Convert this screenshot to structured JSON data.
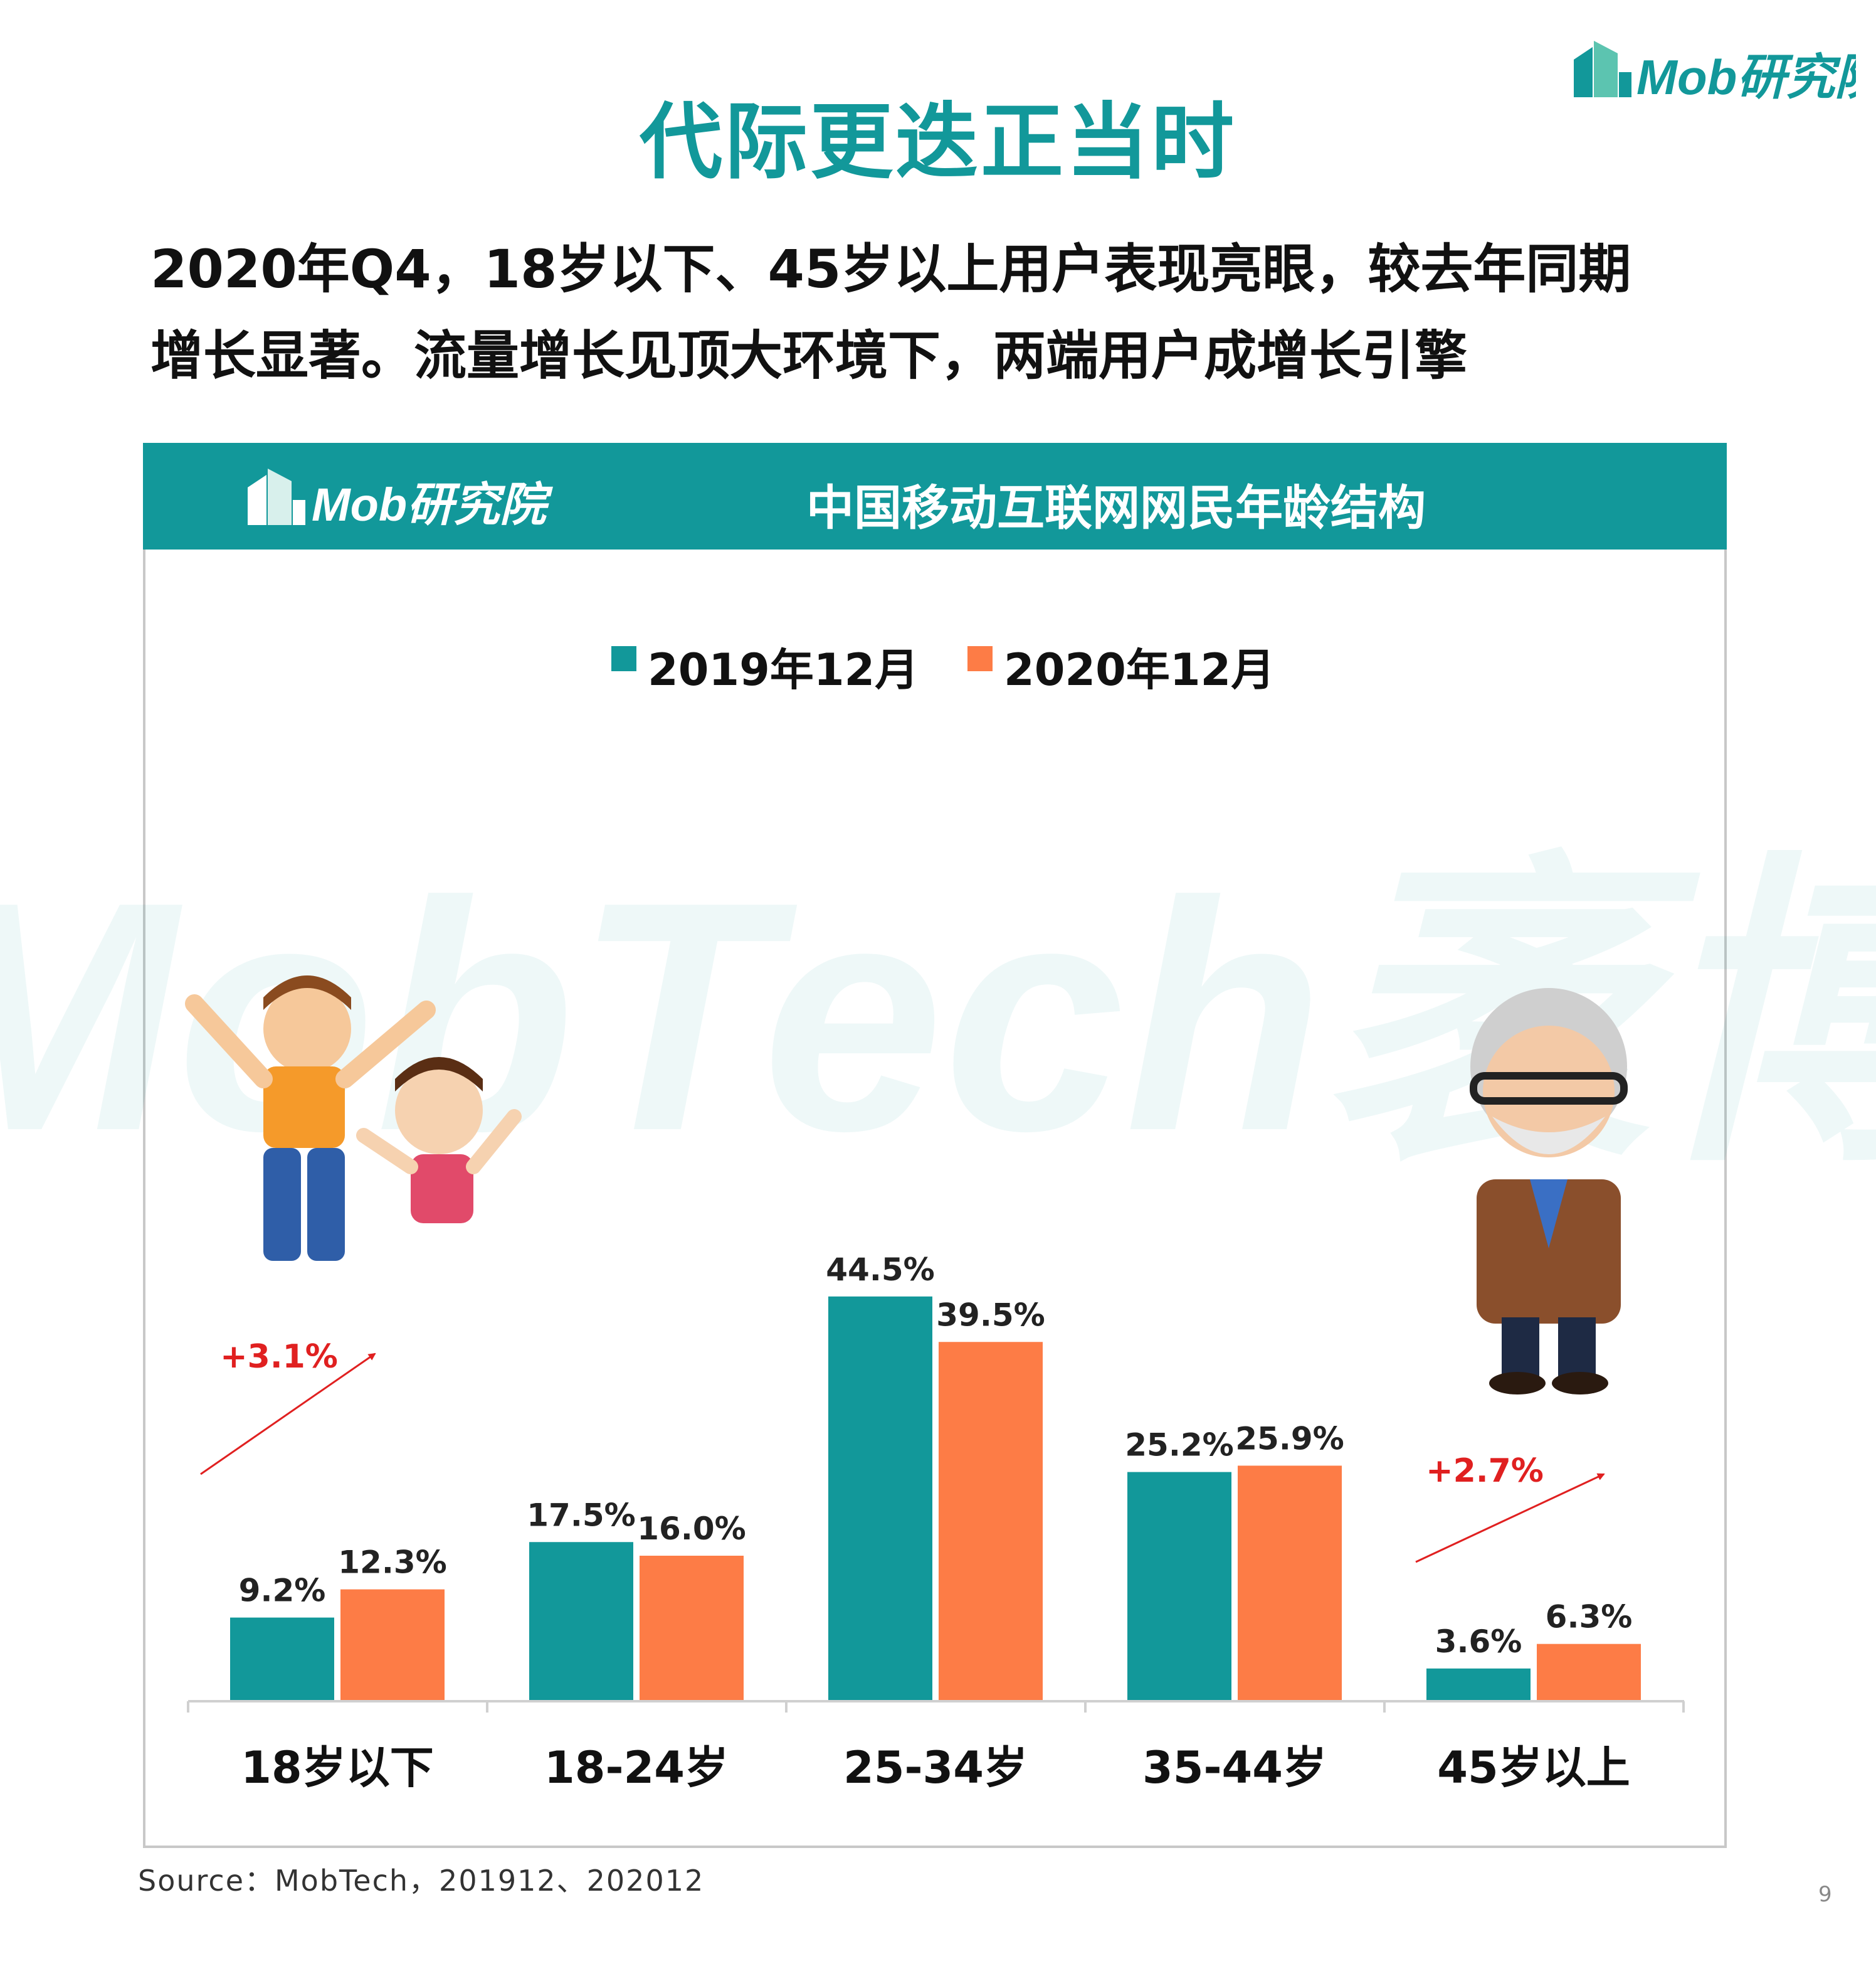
{
  "page": {
    "title": "代际更迭正当时",
    "headline_line1": "2020年Q4，18岁以下、45岁以上用户表现亮眼，较去年同期",
    "headline_line2": "增长显著。流量增长见顶大环境下，两端用户成增长引擎",
    "brand_text": "Mob研究院",
    "watermark_text": "MobTech袤博",
    "source": "Source：MobTech，201912、202012",
    "page_number": "9"
  },
  "colors": {
    "accent": "#12989a",
    "series_2019": "#12989a",
    "series_2020": "#fd7c46",
    "annotation": "#e02020"
  },
  "illustrations": {
    "left": "jumping-kids-illustration",
    "right": "elderly-man-with-glasses-illustration"
  },
  "chart_data": {
    "type": "bar",
    "title": "中国移动互联网网民年龄结构",
    "categories": [
      "18岁以下",
      "18-24岁",
      "25-34岁",
      "35-44岁",
      "45岁以上"
    ],
    "series": [
      {
        "name": "2019年12月",
        "values": [
          9.2,
          17.5,
          44.5,
          25.2,
          3.6
        ],
        "labels": [
          "9.2%",
          "17.5%",
          "44.5%",
          "25.2%",
          "3.6%"
        ]
      },
      {
        "name": "2020年12月",
        "values": [
          12.3,
          16.0,
          39.5,
          25.9,
          6.3
        ],
        "labels": [
          "12.3%",
          "16.0%",
          "39.5%",
          "25.9%",
          "6.3%"
        ]
      }
    ],
    "unit": "%",
    "ylim": [
      0,
      50
    ],
    "grid": false,
    "legend_position": "top-center",
    "annotations": [
      {
        "text": "+3.1%",
        "category": "18岁以下"
      },
      {
        "text": "+2.7%",
        "category": "45岁以上"
      }
    ]
  }
}
